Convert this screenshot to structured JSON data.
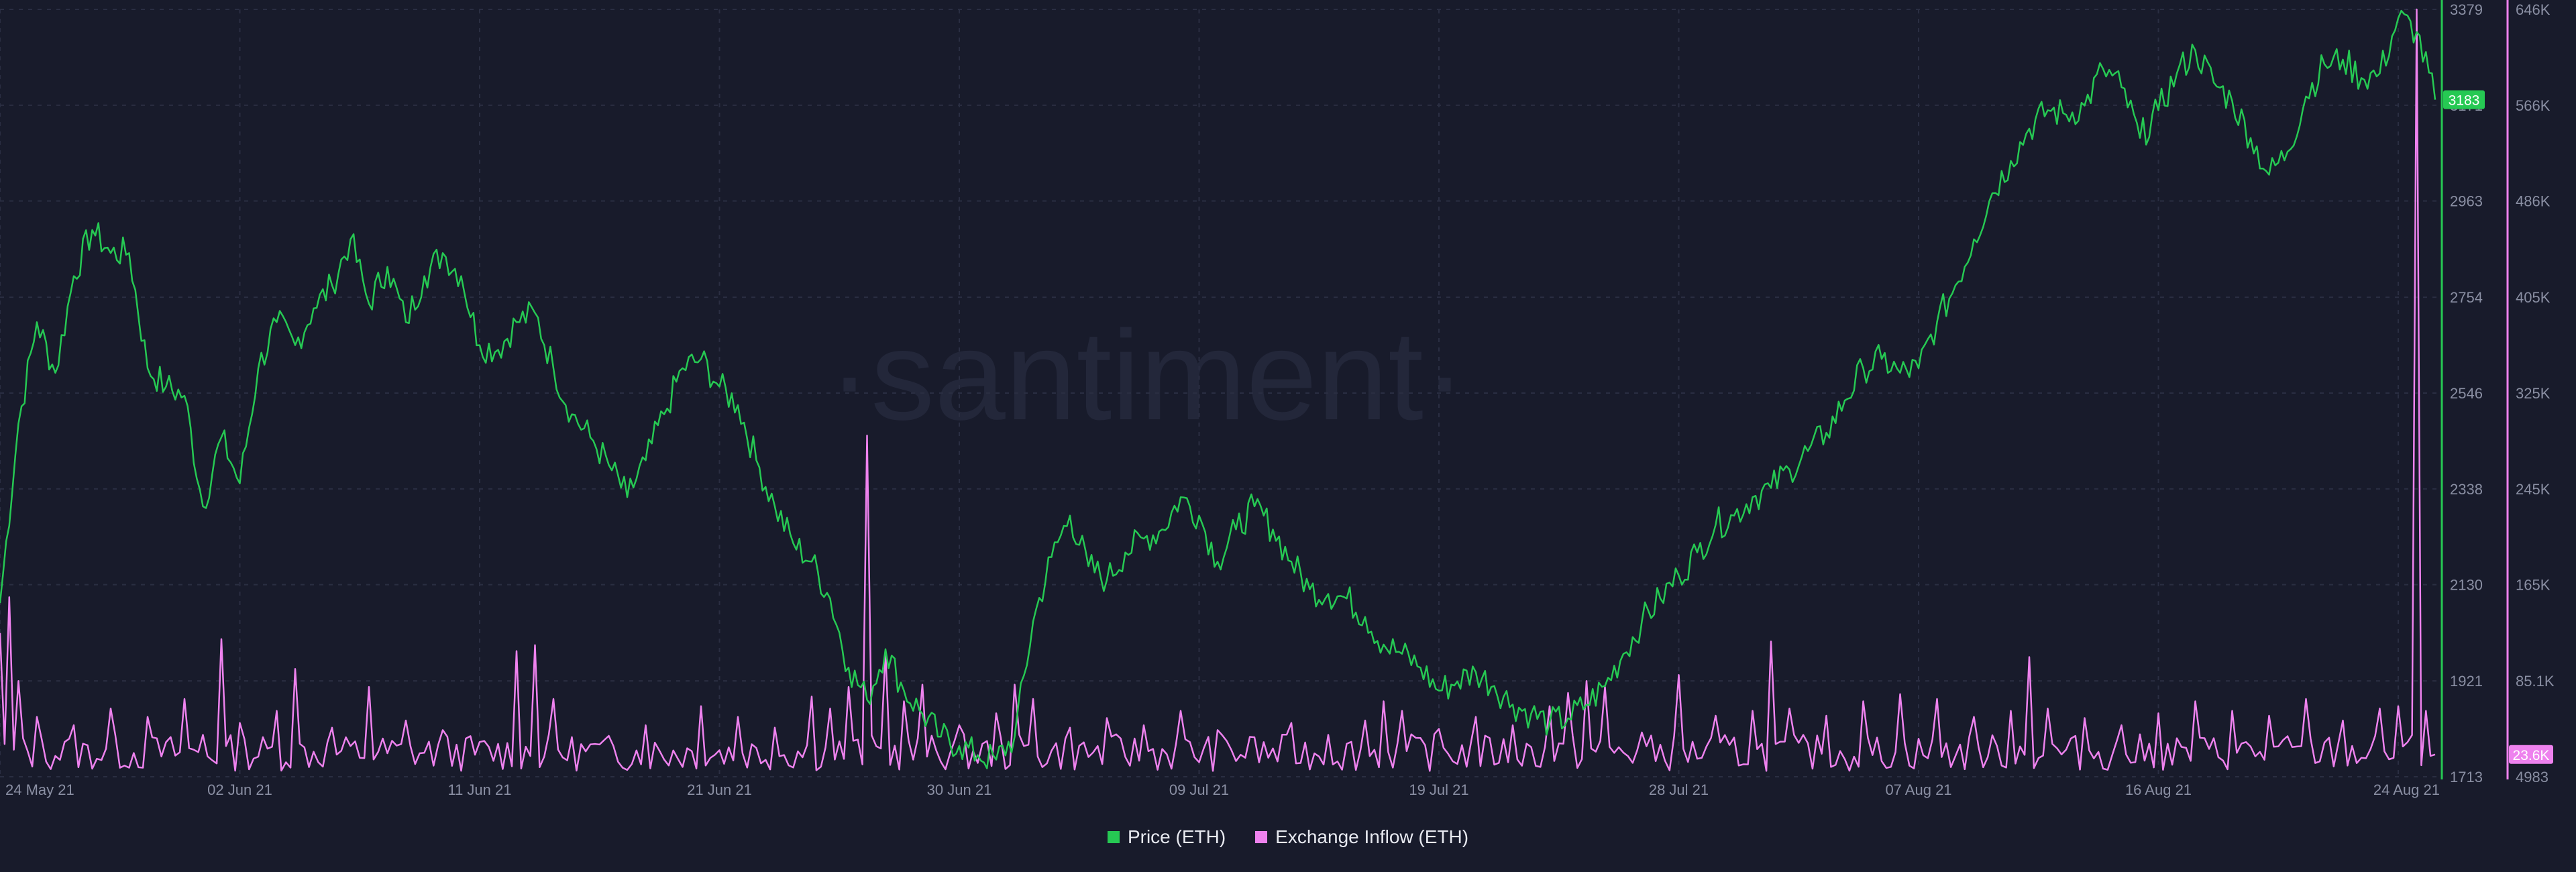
{
  "watermark": "·santiment·",
  "chart_data": {
    "type": "line",
    "x_ticks": [
      "24 May 21",
      "02 Jun 21",
      "11 Jun 21",
      "21 Jun 21",
      "30 Jun 21",
      "09 Jul 21",
      "19 Jul 21",
      "28 Jul 21",
      "07 Aug 21",
      "16 Aug 21",
      "24 Aug 21"
    ],
    "y_left": {
      "name": "Price (ETH)",
      "ticks": [
        "3379",
        "3171",
        "2963",
        "2754",
        "2546",
        "2338",
        "2130",
        "1921",
        "1713"
      ],
      "tick_values": [
        3379,
        3171,
        2963,
        2754,
        2546,
        2338,
        2130,
        1921,
        1713
      ],
      "range": [
        1713,
        3379
      ],
      "current_label": "3183",
      "current_value": 3183
    },
    "y_right": {
      "name": "Exchange Inflow (ETH)",
      "ticks": [
        "646K",
        "566K",
        "486K",
        "405K",
        "325K",
        "245K",
        "165K",
        "85.1K",
        "4983"
      ],
      "tick_values": [
        646000,
        566000,
        486000,
        405000,
        325000,
        245000,
        165000,
        85100,
        4983
      ],
      "range": [
        4983,
        646000
      ],
      "current_label": "23.6K",
      "current_value": 23600
    },
    "series": [
      {
        "name": "Price (ETH)",
        "axis": "left",
        "color": "#26c953",
        "keypoints": [
          [
            0,
            2090
          ],
          [
            2,
            2480
          ],
          [
            4,
            2700
          ],
          [
            6,
            2590
          ],
          [
            8,
            2800
          ],
          [
            10,
            2900
          ],
          [
            12,
            2850
          ],
          [
            14,
            2850
          ],
          [
            16,
            2600
          ],
          [
            18,
            2560
          ],
          [
            20,
            2540
          ],
          [
            22,
            2300
          ],
          [
            24,
            2450
          ],
          [
            26,
            2350
          ],
          [
            28,
            2600
          ],
          [
            30,
            2700
          ],
          [
            32,
            2650
          ],
          [
            34,
            2730
          ],
          [
            36,
            2780
          ],
          [
            38,
            2880
          ],
          [
            40,
            2740
          ],
          [
            42,
            2820
          ],
          [
            44,
            2700
          ],
          [
            46,
            2800
          ],
          [
            48,
            2850
          ],
          [
            50,
            2800
          ],
          [
            52,
            2650
          ],
          [
            54,
            2640
          ],
          [
            56,
            2700
          ],
          [
            58,
            2720
          ],
          [
            60,
            2600
          ],
          [
            62,
            2500
          ],
          [
            64,
            2450
          ],
          [
            66,
            2390
          ],
          [
            68,
            2320
          ],
          [
            70,
            2400
          ],
          [
            72,
            2500
          ],
          [
            74,
            2600
          ],
          [
            76,
            2620
          ],
          [
            78,
            2560
          ],
          [
            80,
            2520
          ],
          [
            82,
            2400
          ],
          [
            84,
            2300
          ],
          [
            86,
            2220
          ],
          [
            88,
            2180
          ],
          [
            90,
            2100
          ],
          [
            92,
            1950
          ],
          [
            94,
            1880
          ],
          [
            96,
            1990
          ],
          [
            98,
            1900
          ],
          [
            100,
            1850
          ],
          [
            102,
            1800
          ],
          [
            104,
            1780
          ],
          [
            106,
            1760
          ],
          [
            108,
            1750
          ],
          [
            110,
            1800
          ],
          [
            112,
            2050
          ],
          [
            114,
            2190
          ],
          [
            116,
            2280
          ],
          [
            118,
            2170
          ],
          [
            120,
            2140
          ],
          [
            122,
            2200
          ],
          [
            124,
            2230
          ],
          [
            126,
            2250
          ],
          [
            128,
            2320
          ],
          [
            130,
            2280
          ],
          [
            132,
            2180
          ],
          [
            134,
            2250
          ],
          [
            136,
            2300
          ],
          [
            138,
            2250
          ],
          [
            140,
            2180
          ],
          [
            142,
            2120
          ],
          [
            144,
            2110
          ],
          [
            146,
            2100
          ],
          [
            148,
            2060
          ],
          [
            150,
            2000
          ],
          [
            152,
            1980
          ],
          [
            154,
            1950
          ],
          [
            156,
            1900
          ],
          [
            158,
            1920
          ],
          [
            160,
            1940
          ],
          [
            162,
            1910
          ],
          [
            164,
            1870
          ],
          [
            166,
            1850
          ],
          [
            168,
            1830
          ],
          [
            170,
            1840
          ],
          [
            172,
            1870
          ],
          [
            174,
            1910
          ],
          [
            176,
            1980
          ],
          [
            178,
            2050
          ],
          [
            180,
            2100
          ],
          [
            182,
            2150
          ],
          [
            184,
            2200
          ],
          [
            186,
            2260
          ],
          [
            188,
            2280
          ],
          [
            190,
            2320
          ],
          [
            192,
            2340
          ],
          [
            194,
            2380
          ],
          [
            196,
            2420
          ],
          [
            198,
            2460
          ],
          [
            200,
            2530
          ],
          [
            202,
            2600
          ],
          [
            204,
            2620
          ],
          [
            206,
            2590
          ],
          [
            208,
            2600
          ],
          [
            210,
            2700
          ],
          [
            212,
            2780
          ],
          [
            214,
            2880
          ],
          [
            216,
            2980
          ],
          [
            218,
            3050
          ],
          [
            220,
            3120
          ],
          [
            222,
            3160
          ],
          [
            224,
            3150
          ],
          [
            226,
            3170
          ],
          [
            228,
            3250
          ],
          [
            230,
            3210
          ],
          [
            232,
            3100
          ],
          [
            234,
            3160
          ],
          [
            236,
            3240
          ],
          [
            238,
            3290
          ],
          [
            240,
            3220
          ],
          [
            242,
            3180
          ],
          [
            244,
            3100
          ],
          [
            246,
            3020
          ],
          [
            248,
            3070
          ],
          [
            250,
            3190
          ],
          [
            252,
            3260
          ],
          [
            254,
            3270
          ],
          [
            256,
            3230
          ],
          [
            258,
            3240
          ],
          [
            260,
            3360
          ],
          [
            262,
            3330
          ],
          [
            264,
            3183
          ]
        ]
      },
      {
        "name": "Exchange Inflow (ETH)",
        "axis": "right",
        "color": "#ee82ee",
        "baseline": 28000,
        "spikes": [
          [
            0,
            125000
          ],
          [
            1,
            155000
          ],
          [
            2,
            85000
          ],
          [
            4,
            55000
          ],
          [
            8,
            48000
          ],
          [
            12,
            62000
          ],
          [
            16,
            55000
          ],
          [
            20,
            70000
          ],
          [
            22,
            40000
          ],
          [
            24,
            120000
          ],
          [
            26,
            50000
          ],
          [
            30,
            60000
          ],
          [
            32,
            95000
          ],
          [
            36,
            46000
          ],
          [
            40,
            80000
          ],
          [
            44,
            52000
          ],
          [
            48,
            44000
          ],
          [
            56,
            110000
          ],
          [
            58,
            115000
          ],
          [
            60,
            70000
          ],
          [
            64,
            32000
          ],
          [
            70,
            48000
          ],
          [
            76,
            64000
          ],
          [
            80,
            55000
          ],
          [
            84,
            46000
          ],
          [
            88,
            72000
          ],
          [
            90,
            62000
          ],
          [
            92,
            80000
          ],
          [
            94,
            290000
          ],
          [
            96,
            110000
          ],
          [
            98,
            68000
          ],
          [
            100,
            82000
          ],
          [
            104,
            48000
          ],
          [
            108,
            58000
          ],
          [
            110,
            82000
          ],
          [
            112,
            70000
          ],
          [
            116,
            46000
          ],
          [
            120,
            54000
          ],
          [
            124,
            48000
          ],
          [
            128,
            60000
          ],
          [
            132,
            44000
          ],
          [
            136,
            38000
          ],
          [
            140,
            50000
          ],
          [
            144,
            40000
          ],
          [
            148,
            52000
          ],
          [
            150,
            68000
          ],
          [
            152,
            60000
          ],
          [
            156,
            45000
          ],
          [
            160,
            55000
          ],
          [
            164,
            48000
          ],
          [
            168,
            64000
          ],
          [
            170,
            75000
          ],
          [
            172,
            85000
          ],
          [
            174,
            80000
          ],
          [
            178,
            42000
          ],
          [
            182,
            90000
          ],
          [
            186,
            56000
          ],
          [
            190,
            60000
          ],
          [
            192,
            118000
          ],
          [
            194,
            62000
          ],
          [
            198,
            56000
          ],
          [
            202,
            68000
          ],
          [
            206,
            74000
          ],
          [
            210,
            70000
          ],
          [
            214,
            55000
          ],
          [
            218,
            60000
          ],
          [
            220,
            105000
          ],
          [
            222,
            62000
          ],
          [
            226,
            54000
          ],
          [
            230,
            48000
          ],
          [
            234,
            58000
          ],
          [
            238,
            68000
          ],
          [
            242,
            60000
          ],
          [
            246,
            56000
          ],
          [
            250,
            70000
          ],
          [
            254,
            52000
          ],
          [
            258,
            62000
          ],
          [
            260,
            64000
          ],
          [
            262,
            646000
          ],
          [
            263,
            60000
          ],
          [
            264,
            23600
          ]
        ]
      }
    ],
    "legend": [
      "Price (ETH)",
      "Exchange Inflow (ETH)"
    ],
    "legend_position": "bottom-center",
    "grid": true
  }
}
